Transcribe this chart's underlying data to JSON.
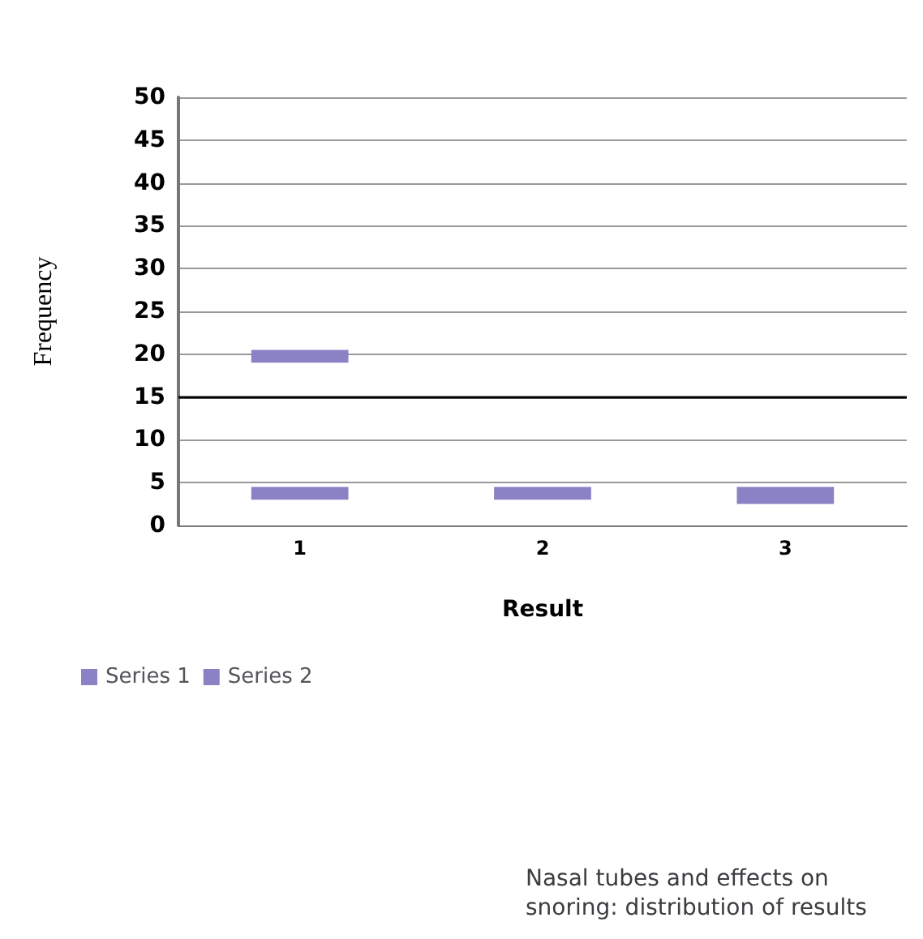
{
  "chart_data": {
    "type": "bar",
    "title": "Nasal tubes and effects on snoring: distribution of results",
    "xlabel": "Result",
    "ylabel": "Frequency",
    "categories": [
      "1",
      "2",
      "3"
    ],
    "series": [
      {
        "name": "Series 1",
        "color": "#8a82c4",
        "base": [
          3,
          3,
          2.5
        ],
        "values": [
          1.5,
          1.5,
          2
        ]
      },
      {
        "name": "Series 2",
        "color": "#8a82c4",
        "base": [
          19,
          null,
          null
        ],
        "values": [
          1.5,
          null,
          null
        ]
      }
    ],
    "ylim": [
      0,
      50
    ],
    "yticks": [
      0,
      5,
      10,
      15,
      20,
      25,
      30,
      35,
      40,
      45,
      50
    ],
    "grid": "y",
    "legend": "bottom left",
    "ref_lines": [
      {
        "axis": "y",
        "value": 15,
        "color": "#000000"
      }
    ]
  }
}
